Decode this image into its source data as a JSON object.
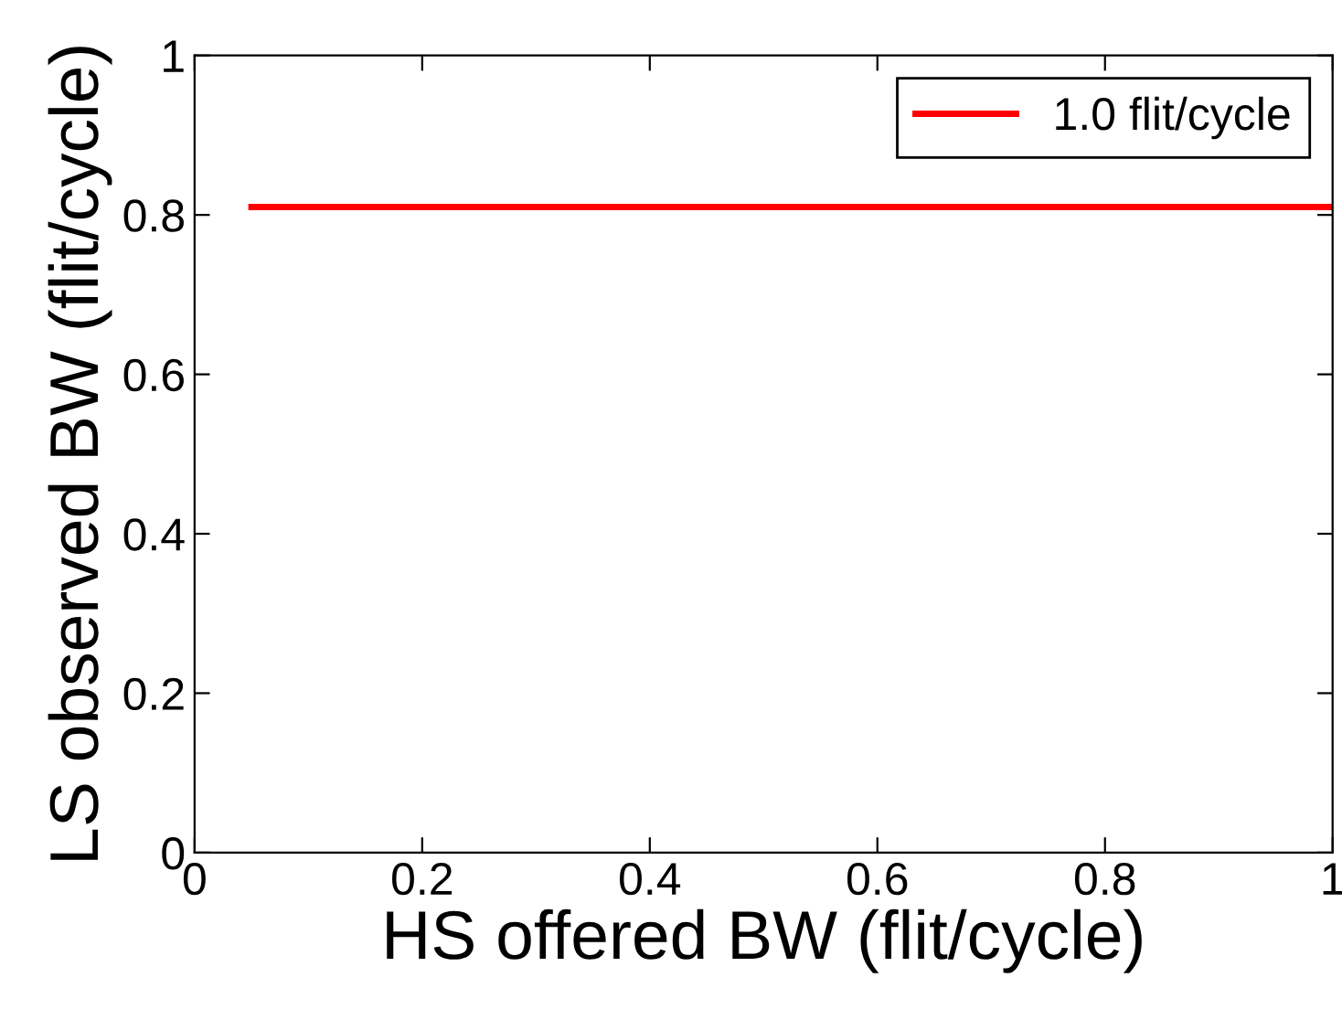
{
  "chart_data": {
    "type": "line",
    "xlabel": "HS offered BW (flit/cycle)",
    "ylabel": "LS observed BW (flit/cycle)",
    "series": [
      {
        "name": "1.0 flit/cycle",
        "color": "#ff0000",
        "x": [
          0.05,
          1.0
        ],
        "values": [
          0.81,
          0.81
        ]
      }
    ],
    "xlim": [
      0,
      1
    ],
    "ylim": [
      0,
      1
    ],
    "xticks": [
      0,
      0.2,
      0.4,
      0.6,
      0.8,
      1
    ],
    "yticks": [
      0,
      0.2,
      0.4,
      0.6,
      0.8,
      1
    ],
    "grid": false,
    "legend": "top right",
    "marker": "none",
    "line_style": "solid"
  }
}
